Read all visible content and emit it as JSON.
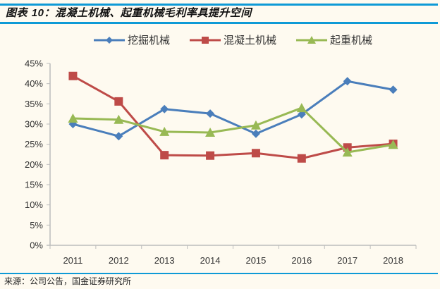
{
  "header": {
    "title_prefix": "图表 ",
    "title_num": "10",
    "title_text": "：混凝土机械、起重机械毛利率具提升空间"
  },
  "footer": {
    "source": "来源：公司公告，国金证券研究所"
  },
  "colors": {
    "rule": "#0e9ad6",
    "background": "#fefaf0",
    "series": [
      "#4a7ebb",
      "#be4b48",
      "#98b954"
    ]
  },
  "chart_data": {
    "type": "line",
    "title": "混凝土机械、起重机械毛利率具提升空间",
    "xlabel": "",
    "ylabel": "",
    "categories": [
      "2011",
      "2012",
      "2013",
      "2014",
      "2015",
      "2016",
      "2017",
      "2018"
    ],
    "series": [
      {
        "name": "挖掘机械",
        "marker": "diamond",
        "values": [
          30.0,
          27.0,
          33.7,
          32.6,
          27.6,
          32.4,
          40.6,
          38.5
        ]
      },
      {
        "name": "混凝土机械",
        "marker": "square",
        "values": [
          41.9,
          35.6,
          22.3,
          22.2,
          22.8,
          21.5,
          24.2,
          25.1
        ]
      },
      {
        "name": "起重机械",
        "marker": "triangle",
        "values": [
          31.4,
          31.1,
          28.1,
          27.9,
          29.7,
          34.0,
          23.0,
          24.9
        ]
      }
    ],
    "yticks": [
      "0%",
      "5%",
      "10%",
      "15%",
      "20%",
      "25%",
      "30%",
      "35%",
      "40%",
      "45%"
    ],
    "ylim": [
      0,
      45
    ],
    "grid": false,
    "legend_position": "top"
  }
}
